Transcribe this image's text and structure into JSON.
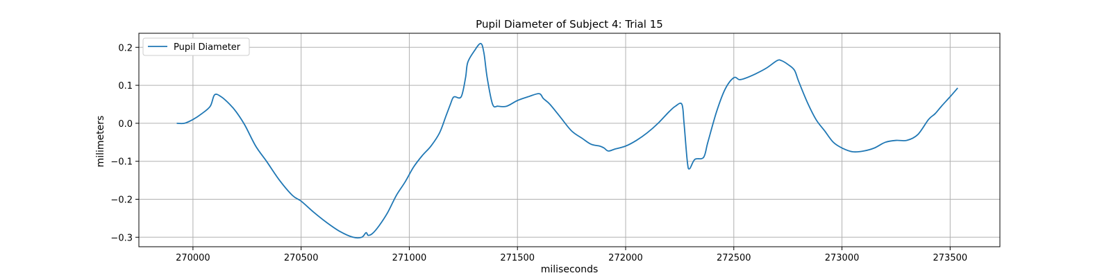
{
  "chart_data": {
    "type": "line",
    "title": "Pupil Diameter of Subject 4: Trial 15",
    "xlabel": "miliseconds",
    "ylabel": "milimeters",
    "xlim": [
      269750,
      273730
    ],
    "ylim": [
      -0.325,
      0.237
    ],
    "xticks": [
      270000,
      270500,
      271000,
      271500,
      272000,
      272500,
      273000,
      273500
    ],
    "yticks": [
      0.2,
      0.1,
      0.0,
      -0.1,
      -0.2,
      -0.3
    ],
    "xtick_labels": [
      "270000",
      "270500",
      "271000",
      "271500",
      "272000",
      "272500",
      "273000",
      "273500"
    ],
    "ytick_labels": [
      "0.2",
      "0.1",
      "0.0",
      "−0.1",
      "−0.2",
      "−0.3"
    ],
    "grid": true,
    "legend_position": "top-left",
    "series": [
      {
        "name": "Pupil Diameter",
        "color": "#1f77b4",
        "x": [
          269925,
          269960,
          270000,
          270040,
          270080,
          270100,
          270130,
          270170,
          270200,
          270240,
          270290,
          270340,
          270400,
          270460,
          270500,
          270560,
          270620,
          270680,
          270740,
          270780,
          270800,
          270810,
          270830,
          270860,
          270900,
          270940,
          270980,
          271020,
          271060,
          271100,
          271140,
          271170,
          271190,
          271200,
          271210,
          271240,
          271260,
          271270,
          271300,
          271330,
          271345,
          271360,
          271385,
          271410,
          271450,
          271500,
          271550,
          271600,
          271620,
          271650,
          271700,
          271750,
          271800,
          271840,
          271880,
          271900,
          271920,
          271950,
          272000,
          272050,
          272100,
          272150,
          272200,
          272230,
          272260,
          272270,
          272285,
          272295,
          272320,
          272360,
          272380,
          272420,
          272460,
          272500,
          272525,
          272550,
          272600,
          272650,
          272700,
          272720,
          272750,
          272780,
          272800,
          272840,
          272880,
          272920,
          272960,
          273000,
          273050,
          273100,
          273150,
          273200,
          273250,
          273300,
          273350,
          273400,
          273430,
          273460,
          273500,
          273535
        ],
        "y": [
          0.0,
          0.0,
          0.01,
          0.025,
          0.045,
          0.075,
          0.07,
          0.05,
          0.03,
          -0.005,
          -0.06,
          -0.1,
          -0.15,
          -0.19,
          -0.205,
          -0.235,
          -0.262,
          -0.285,
          -0.3,
          -0.3,
          -0.288,
          -0.295,
          -0.29,
          -0.27,
          -0.235,
          -0.19,
          -0.155,
          -0.115,
          -0.085,
          -0.06,
          -0.025,
          0.02,
          0.05,
          0.065,
          0.07,
          0.07,
          0.12,
          0.16,
          0.19,
          0.21,
          0.185,
          0.12,
          0.05,
          0.045,
          0.045,
          0.06,
          0.07,
          0.078,
          0.065,
          0.05,
          0.015,
          -0.02,
          -0.04,
          -0.055,
          -0.06,
          -0.065,
          -0.073,
          -0.068,
          -0.06,
          -0.045,
          -0.025,
          0.0,
          0.03,
          0.045,
          0.05,
          0.0,
          -0.1,
          -0.12,
          -0.095,
          -0.09,
          -0.05,
          0.03,
          0.09,
          0.12,
          0.115,
          0.118,
          0.13,
          0.145,
          0.165,
          0.165,
          0.155,
          0.14,
          0.11,
          0.055,
          0.01,
          -0.02,
          -0.05,
          -0.065,
          -0.075,
          -0.073,
          -0.065,
          -0.05,
          -0.045,
          -0.045,
          -0.03,
          0.01,
          0.025,
          0.045,
          0.07,
          0.093
        ]
      }
    ]
  }
}
